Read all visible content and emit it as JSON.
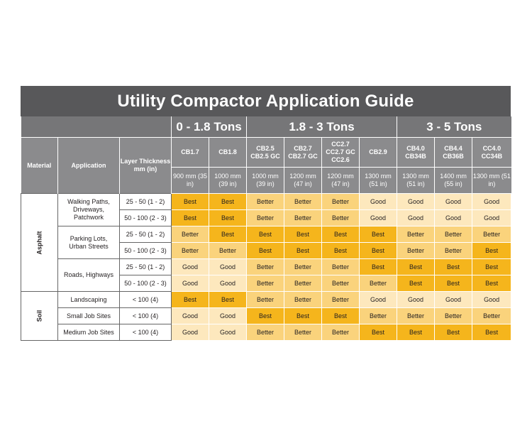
{
  "title": "Utility Compactor Application Guide",
  "headers": {
    "material": "Material",
    "application": "Application",
    "thickness": "Layer Thickness mm (in)"
  },
  "groups": [
    "0 - 1.8 Tons",
    "1.8 - 3 Tons",
    "3 - 5 Tons"
  ],
  "models": [
    {
      "name": "CB1.7",
      "width": "900 mm (35 in)"
    },
    {
      "name": "CB1.8",
      "width": "1000 mm (39 in)"
    },
    {
      "name": "CB2.5 CB2.5 GC",
      "width": "1000 mm (39 in)"
    },
    {
      "name": "CB2.7 CB2.7 GC",
      "width": "1200 mm (47 in)"
    },
    {
      "name": "CC2.7 CC2.7 GC CC2.6",
      "width": "1200 mm (47 in)"
    },
    {
      "name": "CB2.9",
      "width": "1300 mm (51 in)"
    },
    {
      "name": "CB4.0 CB34B",
      "width": "1300 mm (51 in)"
    },
    {
      "name": "CB4.4 CB36B",
      "width": "1400 mm (55 in)"
    },
    {
      "name": "CC4.0 CC34B",
      "width": "1300 mm (51 in)"
    }
  ],
  "materials": [
    {
      "name": "Asphalt",
      "applications": [
        {
          "name": "Walking Paths, Driveways, Patchwork",
          "rows": [
            {
              "thickness": "25 - 50 (1 - 2)",
              "ratings": [
                "Best",
                "Best",
                "Better",
                "Better",
                "Better",
                "Good",
                "Good",
                "Good",
                "Good"
              ]
            },
            {
              "thickness": "50 - 100 (2 - 3)",
              "ratings": [
                "Best",
                "Best",
                "Better",
                "Better",
                "Better",
                "Good",
                "Good",
                "Good",
                "Good"
              ]
            }
          ]
        },
        {
          "name": "Parking Lots, Urban Streets",
          "rows": [
            {
              "thickness": "25 - 50 (1 - 2)",
              "ratings": [
                "Better",
                "Best",
                "Best",
                "Best",
                "Best",
                "Best",
                "Better",
                "Better",
                "Better"
              ]
            },
            {
              "thickness": "50 - 100 (2 - 3)",
              "ratings": [
                "Better",
                "Better",
                "Best",
                "Best",
                "Best",
                "Best",
                "Better",
                "Better",
                "Best"
              ]
            }
          ]
        },
        {
          "name": "Roads, Highways",
          "rows": [
            {
              "thickness": "25 - 50 (1 - 2)",
              "ratings": [
                "Good",
                "Good",
                "Better",
                "Better",
                "Better",
                "Best",
                "Best",
                "Best",
                "Best"
              ]
            },
            {
              "thickness": "50 - 100 (2 - 3)",
              "ratings": [
                "Good",
                "Good",
                "Better",
                "Better",
                "Better",
                "Better",
                "Best",
                "Best",
                "Best"
              ]
            }
          ]
        }
      ]
    },
    {
      "name": "Soil",
      "applications": [
        {
          "name": "Landscaping",
          "rows": [
            {
              "thickness": "< 100 (4)",
              "ratings": [
                "Best",
                "Best",
                "Better",
                "Better",
                "Better",
                "Good",
                "Good",
                "Good",
                "Good"
              ]
            }
          ]
        },
        {
          "name": "Small Job Sites",
          "rows": [
            {
              "thickness": "< 100 (4)",
              "ratings": [
                "Good",
                "Good",
                "Best",
                "Best",
                "Best",
                "Better",
                "Better",
                "Better",
                "Better"
              ]
            }
          ]
        },
        {
          "name": "Medium Job Sites",
          "rows": [
            {
              "thickness": "< 100 (4)",
              "ratings": [
                "Good",
                "Good",
                "Better",
                "Better",
                "Better",
                "Best",
                "Best",
                "Best",
                "Best"
              ]
            }
          ]
        }
      ]
    }
  ],
  "colors": {
    "best": "#f5b51c",
    "better": "#fad37c",
    "good": "#fde8bd"
  }
}
